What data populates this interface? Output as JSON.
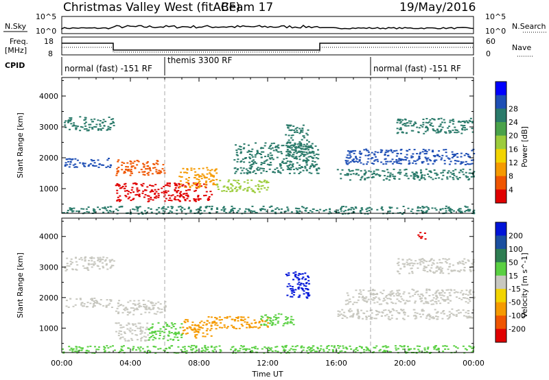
{
  "header": {
    "title": "Christmas Valley West (fitACF)",
    "beam": "Beam 17",
    "date": "19/May/2016"
  },
  "nsky_panel": {
    "left_label": "N.Sky",
    "right_label": "N.Search",
    "left_ticks": [
      "10^5",
      "10^0"
    ],
    "right_ticks": [
      "10^5",
      "10^0"
    ]
  },
  "freq_panel": {
    "left_label_1": "Freq.",
    "left_label_2": "[MHz]",
    "left_ticks": [
      "18",
      "8"
    ],
    "right_label": "Nave",
    "right_ticks": [
      "60",
      "0"
    ]
  },
  "cpid": {
    "label": "CPID",
    "modes": [
      {
        "text": "normal (fast) -151 RF",
        "start_h": 0,
        "end_h": 6
      },
      {
        "text": "themis 3300 RF",
        "start_h": 6,
        "end_h": 18
      },
      {
        "text": "normal (fast) -151 RF",
        "start_h": 18,
        "end_h": 24
      }
    ]
  },
  "chart_data": [
    {
      "type": "heatmap",
      "name": "power",
      "ylabel": "Slant Range [km]",
      "xlabel": "Time UT",
      "xlim": [
        0,
        24
      ],
      "ylim": [
        200,
        4600
      ],
      "yticks": [
        1000,
        2000,
        3000,
        4000
      ],
      "xticks": [
        "00:00",
        "04:00",
        "08:00",
        "12:00",
        "16:00",
        "20:00",
        "00:00"
      ],
      "colorbar": {
        "label": "Power [dB]",
        "ticks": [
          "4",
          "8",
          "12",
          "16",
          "20",
          "24",
          "28"
        ],
        "colors": [
          "#0000ff",
          "#1f4fb5",
          "#2a7a6a",
          "#4aa24a",
          "#9ccc3c",
          "#f2d400",
          "#f59a00",
          "#ef5500",
          "#e00000"
        ]
      },
      "regions": [
        {
          "t0": 0.1,
          "t1": 3.0,
          "r0": 2900,
          "r1": 3350,
          "value": "#2a7a6a"
        },
        {
          "t0": 0.1,
          "t1": 2.9,
          "r0": 1700,
          "r1": 2000,
          "value": "#1f4fb5"
        },
        {
          "t0": 3.1,
          "t1": 6.0,
          "r0": 1450,
          "r1": 1950,
          "value": "#ef5500"
        },
        {
          "t0": 3.1,
          "t1": 8.7,
          "r0": 600,
          "r1": 1200,
          "value": "#e00000"
        },
        {
          "t0": 6.8,
          "t1": 9.0,
          "r0": 1050,
          "r1": 1700,
          "value": "#f59a00"
        },
        {
          "t0": 9.0,
          "t1": 12.0,
          "r0": 900,
          "r1": 1300,
          "value": "#9ccc3c"
        },
        {
          "t0": 10.0,
          "t1": 15.0,
          "r0": 1500,
          "r1": 2500,
          "value": "#2a7a6a"
        },
        {
          "t0": 13.0,
          "t1": 14.4,
          "r0": 1900,
          "r1": 3100,
          "value": "#2a7a6a"
        },
        {
          "t0": 16.0,
          "t1": 24.0,
          "r0": 1300,
          "r1": 1650,
          "value": "#2a7a6a"
        },
        {
          "t0": 16.5,
          "t1": 24.0,
          "r0": 1800,
          "r1": 2300,
          "value": "#1f4fb5"
        },
        {
          "t0": 19.5,
          "t1": 24.0,
          "r0": 2800,
          "r1": 3300,
          "value": "#2a7a6a"
        },
        {
          "t0": 0.0,
          "t1": 24.0,
          "r0": 200,
          "r1": 450,
          "value": "#2a7a6a"
        }
      ]
    },
    {
      "type": "heatmap",
      "name": "velocity",
      "ylabel": "Slant Range [km]",
      "xlabel": "Time UT",
      "xlim": [
        0,
        24
      ],
      "ylim": [
        200,
        4600
      ],
      "yticks": [
        1000,
        2000,
        3000,
        4000
      ],
      "xticks": [
        "00:00",
        "04:00",
        "08:00",
        "12:00",
        "16:00",
        "20:00",
        "00:00"
      ],
      "colorbar": {
        "label": "Velocity [m s^-1]",
        "ticks": [
          "200",
          "100",
          "50",
          "15",
          "-15",
          "-50",
          "-100",
          "-200"
        ],
        "colors": [
          "#0014d8",
          "#1b4fa0",
          "#2e7d52",
          "#5ad042",
          "#c8c8c0",
          "#f2d400",
          "#f59a00",
          "#ef5500",
          "#e00000"
        ]
      },
      "regions": [
        {
          "t0": 0.1,
          "t1": 3.0,
          "r0": 2900,
          "r1": 3350,
          "value": "#c8c8c0"
        },
        {
          "t0": 0.1,
          "t1": 2.9,
          "r0": 1700,
          "r1": 2000,
          "value": "#c8c8c0"
        },
        {
          "t0": 3.1,
          "t1": 6.0,
          "r0": 1450,
          "r1": 1950,
          "value": "#c8c8c0"
        },
        {
          "t0": 3.1,
          "t1": 5.0,
          "r0": 600,
          "r1": 1200,
          "value": "#c8c8c0"
        },
        {
          "t0": 5.0,
          "t1": 7.0,
          "r0": 600,
          "r1": 1200,
          "value": "#5ad042"
        },
        {
          "t0": 7.0,
          "t1": 8.7,
          "r0": 700,
          "r1": 1300,
          "value": "#f59a00"
        },
        {
          "t0": 8.5,
          "t1": 12.0,
          "r0": 1000,
          "r1": 1400,
          "value": "#f59a00"
        },
        {
          "t0": 11.5,
          "t1": 13.5,
          "r0": 1100,
          "r1": 1500,
          "value": "#5ad042"
        },
        {
          "t0": 13.0,
          "t1": 14.4,
          "r0": 2000,
          "r1": 2900,
          "value": "#0014d8"
        },
        {
          "t0": 16.0,
          "t1": 24.0,
          "r0": 1300,
          "r1": 1650,
          "value": "#c8c8c0"
        },
        {
          "t0": 16.5,
          "t1": 24.0,
          "r0": 1800,
          "r1": 2300,
          "value": "#c8c8c0"
        },
        {
          "t0": 19.5,
          "t1": 24.0,
          "r0": 2800,
          "r1": 3300,
          "value": "#c8c8c0"
        },
        {
          "t0": 20.7,
          "t1": 21.2,
          "r0": 3900,
          "r1": 4150,
          "value": "#e00000"
        },
        {
          "t0": 0.0,
          "t1": 24.0,
          "r0": 200,
          "r1": 450,
          "value": "#5ad042"
        }
      ]
    }
  ]
}
